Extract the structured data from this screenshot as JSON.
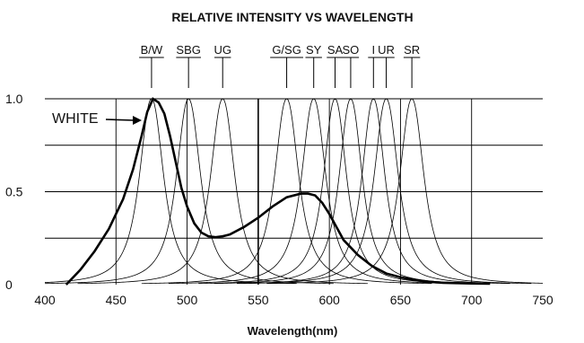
{
  "chart_data": {
    "type": "line",
    "title": "RELATIVE INTENSITY VS WAVELENGTH",
    "xlabel": "Wavelength(nm)",
    "ylabel": "",
    "xlim": [
      400,
      750
    ],
    "ylim": [
      0,
      1.0
    ],
    "x_ticks": [
      400,
      450,
      500,
      550,
      600,
      650,
      700,
      750
    ],
    "x_tick_labels": [
      "400",
      "450",
      "500",
      "550",
      "600",
      "650",
      "700",
      "750"
    ],
    "y_ticks": [
      0,
      0.25,
      0.5,
      0.75,
      1.0
    ],
    "y_tick_labels": [
      "0",
      "",
      "0.5",
      "",
      "1.0"
    ],
    "grid": true,
    "series": [
      {
        "name": "B/W",
        "peak": 475,
        "width": 20
      },
      {
        "name": "SBG",
        "peak": 501,
        "width": 20
      },
      {
        "name": "UG",
        "peak": 525,
        "width": 20
      },
      {
        "name": "G/SG",
        "peak": 570,
        "width": 20
      },
      {
        "name": "SY",
        "peak": 589,
        "width": 20
      },
      {
        "name": "SA",
        "peak": 604,
        "width": 19
      },
      {
        "name": "SO",
        "peak": 615,
        "width": 19
      },
      {
        "name": "I",
        "peak": 631,
        "width": 19
      },
      {
        "name": "UR",
        "peak": 640,
        "width": 20
      },
      {
        "name": "SR",
        "peak": 658,
        "width": 20
      }
    ],
    "white": {
      "name": "WHITE",
      "x": [
        415,
        425,
        435,
        445,
        455,
        462,
        468,
        472,
        476,
        480,
        484,
        488,
        492,
        496,
        500,
        505,
        510,
        515,
        520,
        525,
        530,
        540,
        550,
        560,
        570,
        580,
        585,
        590,
        595,
        600,
        605,
        610,
        620,
        630,
        640,
        650,
        660,
        670,
        680,
        690,
        700,
        713
      ],
      "y": [
        0.0,
        0.08,
        0.18,
        0.3,
        0.46,
        0.62,
        0.8,
        0.93,
        1.0,
        0.98,
        0.92,
        0.8,
        0.66,
        0.52,
        0.42,
        0.33,
        0.28,
        0.26,
        0.255,
        0.26,
        0.27,
        0.31,
        0.36,
        0.42,
        0.47,
        0.49,
        0.49,
        0.48,
        0.44,
        0.38,
        0.31,
        0.24,
        0.16,
        0.1,
        0.06,
        0.04,
        0.025,
        0.015,
        0.01,
        0.008,
        0.006,
        0.005
      ]
    }
  }
}
